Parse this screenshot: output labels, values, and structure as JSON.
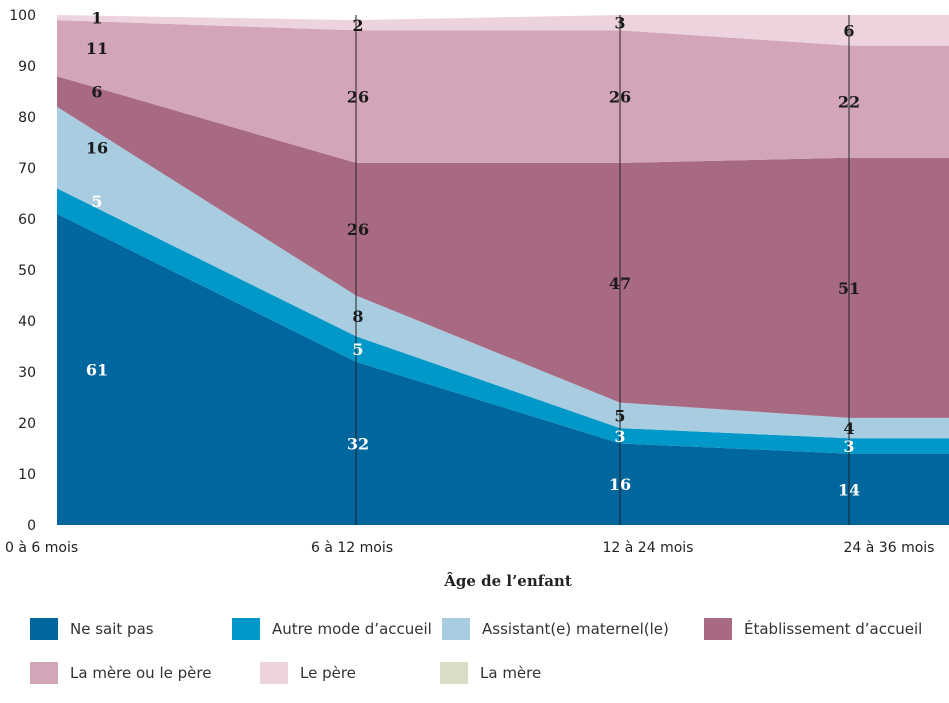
{
  "chart_data": {
    "type": "area",
    "stacked": true,
    "title": "",
    "xlabel": "Âge de l’enfant",
    "ylabel": "",
    "ylim": [
      0,
      100
    ],
    "yticks": [
      "0",
      "10",
      "20",
      "30",
      "40",
      "50",
      "60",
      "70",
      "80",
      "90",
      "100"
    ],
    "categories": [
      "0 à 6 mois",
      "6 à 12 mois",
      "12 à 24 mois",
      "24  à 36 mois"
    ],
    "series": [
      {
        "name": "Ne sait pas",
        "color": "#00669E",
        "values": [
          61,
          32,
          16,
          14
        ],
        "label_color": "#ffffff"
      },
      {
        "name": "Autre mode d’accueil",
        "color": "#0098C8",
        "values": [
          5,
          5,
          3,
          3
        ],
        "label_color": "#ffffff"
      },
      {
        "name": "Assistant(e) maternel(le)",
        "color": "#A8CDE0",
        "values": [
          16,
          8,
          5,
          4
        ],
        "label_color": "#1a1a1a"
      },
      {
        "name": "Établissement d’accueil",
        "color": "#A86A82",
        "values": [
          6,
          26,
          47,
          51
        ],
        "label_color": "#1a1a1a"
      },
      {
        "name": "La mère ou le père",
        "color": "#D2A6B8",
        "values": [
          11,
          26,
          26,
          22
        ],
        "label_color": "#1a1a1a"
      },
      {
        "name": "Le père",
        "color": "#EDD3DD",
        "values": [
          1,
          2,
          3,
          6
        ],
        "label_color": "#1a1a1a"
      },
      {
        "name": "La mère",
        "color": "#DADCC6",
        "values": [
          0,
          0,
          0,
          0
        ],
        "label_color": "#1a1a1a"
      }
    ],
    "legend_position": "bottom",
    "grid": false
  }
}
